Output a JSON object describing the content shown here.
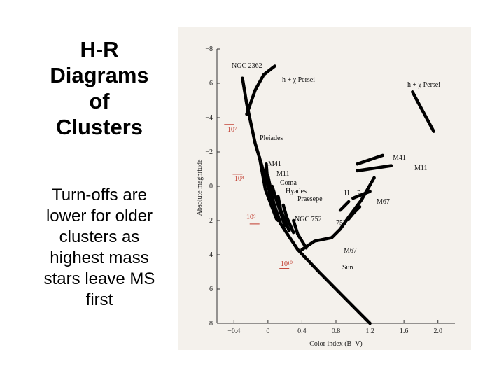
{
  "slide": {
    "title": "H-R\nDiagrams\nof\nClusters",
    "body": "Turn-offs are\nlower for older\nclusters as\nhighest mass\nstars leave MS\nfirst"
  },
  "chart_data": {
    "type": "line",
    "xlabel": "Color index (B–V)",
    "ylabel": "Absolute magnitude",
    "x_ticks": [
      "−0.4",
      "0",
      "0.4",
      "0.8",
      "1.2",
      "1.6",
      "2.0"
    ],
    "y_ticks": [
      "−8",
      "−6",
      "−4",
      "−2",
      "0",
      "2",
      "4",
      "6",
      "8"
    ],
    "xlim": [
      -0.6,
      2.2
    ],
    "ylim": [
      8,
      -8
    ],
    "cluster_labels": {
      "ngc2362": "NGC 2362",
      "hpersei_main": "h + χ Persei",
      "hpersei_giant": "h + χ Persei",
      "pleiades": "Pleiades",
      "m41": "M41",
      "m11": "M11",
      "coma": "Coma",
      "hyades": "Hyades",
      "praesepe": "Praesepe",
      "hp": "H + P",
      "ngc752": "NGC 752",
      "n752": "752",
      "m41_giant": "M41",
      "m11_giant": "M11",
      "m67_giant": "M67",
      "m67": "M67",
      "sun": "Sun"
    },
    "age_labels": [
      "10⁷",
      "10⁸",
      "10⁹",
      "10¹⁰"
    ],
    "age_markers": [
      {
        "label": "10⁷",
        "bv": -0.4,
        "mag": -3.6
      },
      {
        "label": "10⁸",
        "bv": -0.3,
        "mag": -0.7
      },
      {
        "label": "10⁹",
        "bv": -0.1,
        "mag": 2.2
      },
      {
        "label": "10¹⁰",
        "bv": 0.25,
        "mag": 4.8
      }
    ],
    "series": [
      {
        "name": "NGC 2362",
        "points": [
          [
            -0.3,
            -6.3
          ],
          [
            -0.25,
            -4.8
          ],
          [
            -0.15,
            -2.5
          ],
          [
            0.0,
            0.0
          ],
          [
            0.15,
            2.2
          ],
          [
            0.35,
            3.7
          ],
          [
            0.6,
            5.0
          ],
          [
            0.9,
            6.5
          ],
          [
            1.2,
            8.0
          ]
        ]
      },
      {
        "name": "h + χ Persei",
        "points": [
          [
            -0.25,
            -4.2
          ],
          [
            -0.15,
            -5.6
          ],
          [
            -0.05,
            -6.5
          ],
          [
            0.08,
            -7.0
          ]
        ]
      },
      {
        "name": "h + χ Persei",
        "points": [
          [
            1.7,
            -5.5
          ],
          [
            1.95,
            -3.2
          ]
        ]
      },
      {
        "name": "Pleiades",
        "points": [
          [
            -0.1,
            -1.7
          ],
          [
            -0.03,
            0.2
          ],
          [
            0.1,
            1.9
          ]
        ]
      },
      {
        "name": "M41",
        "points": [
          [
            -0.02,
            -1.3
          ],
          [
            0.0,
            0.0
          ],
          [
            0.1,
            1.8
          ]
        ]
      },
      {
        "name": "M11",
        "points": [
          [
            0.0,
            -0.6
          ],
          [
            0.05,
            0.6
          ],
          [
            0.12,
            2.0
          ]
        ]
      },
      {
        "name": "Coma",
        "points": [
          [
            0.05,
            0.0
          ],
          [
            0.1,
            0.8
          ],
          [
            0.2,
            2.3
          ]
        ]
      },
      {
        "name": "Hyades",
        "points": [
          [
            0.12,
            0.6
          ],
          [
            0.15,
            1.4
          ],
          [
            0.25,
            2.6
          ]
        ]
      },
      {
        "name": "Praesepe",
        "points": [
          [
            0.18,
            1.1
          ],
          [
            0.22,
            1.8
          ],
          [
            0.3,
            2.7
          ]
        ]
      },
      {
        "name": "NGC 752",
        "points": [
          [
            0.3,
            2.0
          ],
          [
            0.35,
            2.8
          ],
          [
            0.45,
            3.6
          ]
        ]
      },
      {
        "name": "M67",
        "points": [
          [
            0.4,
            3.7
          ],
          [
            0.55,
            3.2
          ],
          [
            0.75,
            3.0
          ],
          [
            0.85,
            2.5
          ],
          [
            0.95,
            1.8
          ],
          [
            1.1,
            0.8
          ],
          [
            1.25,
            -0.5
          ]
        ]
      },
      {
        "name": "752",
        "points": [
          [
            0.95,
            1.9
          ],
          [
            1.0,
            1.6
          ],
          [
            1.08,
            1.2
          ]
        ]
      },
      {
        "name": "H + P",
        "points": [
          [
            0.85,
            1.4
          ],
          [
            0.95,
            0.9
          ]
        ]
      },
      {
        "name": "M41",
        "points": [
          [
            1.05,
            -1.3
          ],
          [
            1.35,
            -1.8
          ]
        ]
      },
      {
        "name": "M11",
        "points": [
          [
            1.05,
            -0.9
          ],
          [
            1.45,
            -1.2
          ]
        ]
      },
      {
        "name": "M67",
        "points": [
          [
            1.0,
            0.7
          ],
          [
            1.2,
            0.3
          ]
        ]
      }
    ]
  }
}
